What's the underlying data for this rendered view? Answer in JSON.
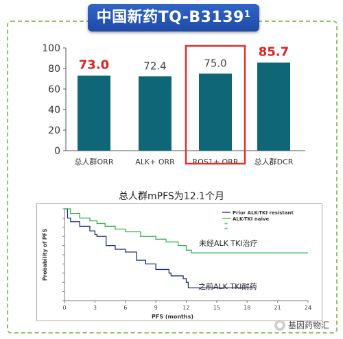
{
  "header": {
    "title_main": "中国新药TQ-B3139",
    "title_sup": "1"
  },
  "colors": {
    "bar": "#0e6677",
    "highlight_text": "#e02020",
    "highlight_box": "#e03030",
    "banner": "#2458b8",
    "frame_border": "#8fc46a",
    "km_resistant": "#1e2f8a",
    "km_naive": "#2fae4a"
  },
  "chart_data": [
    {
      "type": "bar",
      "categories": [
        "总人群ORR",
        "ALK+ ORR",
        "ROS1+ ORR",
        "总人群DCR"
      ],
      "values": [
        73.0,
        72.4,
        75.0,
        85.7
      ],
      "value_labels": [
        "73.0",
        "72.4",
        "75.0",
        "85.7"
      ],
      "highlight_labels": [
        true,
        false,
        false,
        true
      ],
      "boxed_category_index": 2,
      "ylim": [
        0,
        100
      ],
      "yticks": [
        "0",
        "20",
        "40",
        "60",
        "80",
        "100"
      ],
      "grid": false
    },
    {
      "type": "line",
      "title": "总人群mPFS为12.1个月",
      "xlabel": "PFS (months)",
      "ylabel": "Probability of PFS",
      "xlim": [
        0,
        24
      ],
      "ylim": [
        0,
        1
      ],
      "xticks": [
        "0",
        "3",
        "6",
        "9",
        "12",
        "15",
        "18",
        "21",
        "24"
      ],
      "legend_position": "top-right",
      "series": [
        {
          "name": "Prior ALK-TKI resistant",
          "annotation": "之前ALK TKI耐药",
          "x": [
            0,
            0.3,
            0.6,
            1.5,
            2.5,
            3.0,
            3.2,
            4.1,
            5.0,
            6.0,
            7.1,
            8.0,
            9.0,
            10.3,
            10.5,
            11.7,
            12.0,
            12.2,
            18.8
          ],
          "y": [
            1.0,
            0.9,
            0.86,
            0.81,
            0.76,
            0.72,
            0.7,
            0.6,
            0.56,
            0.53,
            0.44,
            0.4,
            0.34,
            0.3,
            0.27,
            0.24,
            0.2,
            0.14,
            0.14
          ]
        },
        {
          "name": "ALK-TKI naive",
          "annotation": "未经ALK TKI治疗",
          "x": [
            0,
            0.6,
            1.5,
            2.5,
            3.2,
            4.0,
            5.0,
            6.0,
            7.5,
            9.0,
            10.0,
            11.2,
            12.0,
            12.5,
            24.0
          ],
          "y": [
            1.0,
            0.95,
            0.9,
            0.87,
            0.84,
            0.81,
            0.78,
            0.75,
            0.7,
            0.67,
            0.64,
            0.6,
            0.55,
            0.52,
            0.52
          ]
        }
      ]
    }
  ],
  "watermark": {
    "text": "基因药物汇"
  }
}
